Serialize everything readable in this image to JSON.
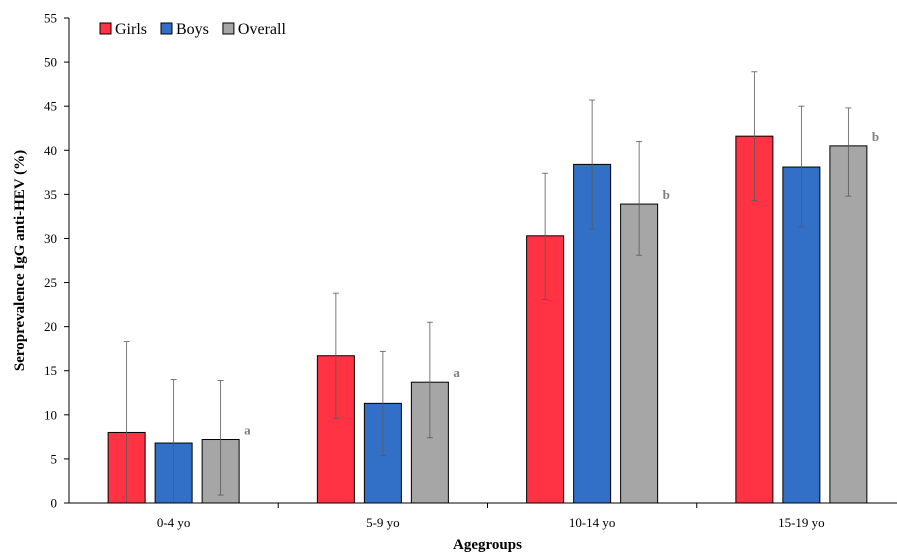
{
  "chart_data": {
    "type": "bar",
    "xlabel": "Agegroups",
    "ylabel": "Seroprevalence IgG anti-HEV (%)",
    "ylim": [
      0,
      55
    ],
    "yticks": [
      0,
      5,
      10,
      15,
      20,
      25,
      30,
      35,
      40,
      45,
      50,
      55
    ],
    "grid": false,
    "legend_position": "top-left",
    "categories": [
      "0-4 yo",
      "5-9 yo",
      "10-14 yo",
      "15-19 yo"
    ],
    "series": [
      {
        "name": "Girls",
        "color": "#ff3344",
        "values": [
          8.0,
          16.7,
          30.3,
          41.6
        ],
        "error_low": [
          0,
          9.6,
          23.1,
          34.3
        ],
        "error_high": [
          18.3,
          23.8,
          37.4,
          48.9
        ]
      },
      {
        "name": "Boys",
        "color": "#3270c8",
        "values": [
          6.8,
          11.3,
          38.4,
          38.1
        ],
        "error_low": [
          0,
          5.4,
          31.1,
          31.3
        ],
        "error_high": [
          14.0,
          17.2,
          45.7,
          45.0
        ]
      },
      {
        "name": "Overall",
        "color": "#a6a6a6",
        "values": [
          7.2,
          13.7,
          33.9,
          40.5
        ],
        "error_low": [
          0.9,
          7.4,
          28.1,
          34.8
        ],
        "error_high": [
          13.9,
          20.5,
          41.0,
          44.8
        ]
      }
    ],
    "annotations": [
      "a",
      "a",
      "b",
      "b"
    ]
  }
}
